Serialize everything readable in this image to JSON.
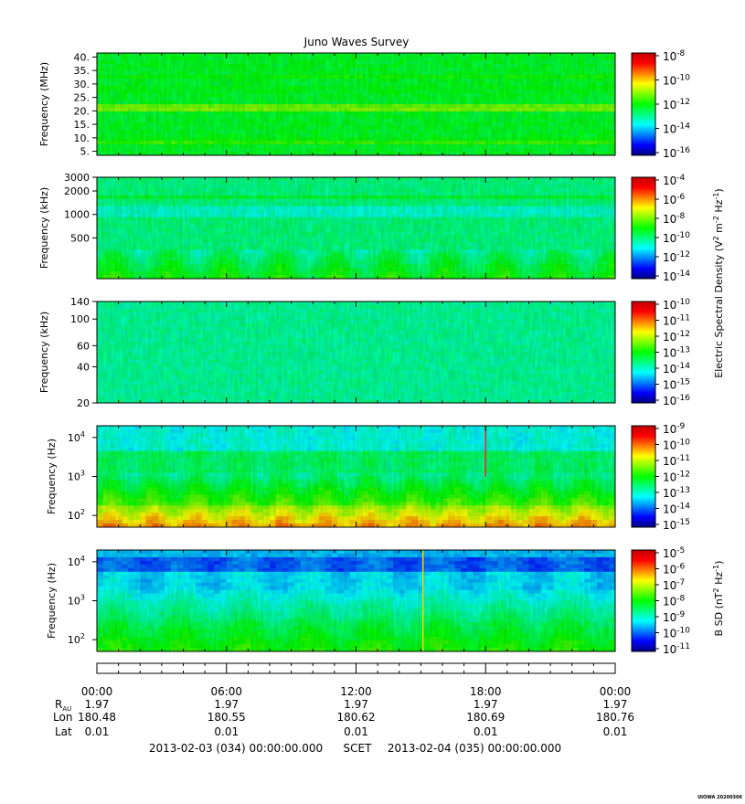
{
  "title": "Juno Waves Survey",
  "colors": {
    "background": "#ffffff",
    "colormap": [
      "#000080",
      "#0000ff",
      "#0080ff",
      "#00ffff",
      "#00ff80",
      "#00ff00",
      "#80ff00",
      "#ffff00",
      "#ff8000",
      "#ff0000",
      "#c00000"
    ]
  },
  "chart_data": [
    {
      "type": "heatmap",
      "ylabel": "Frequency (MHz)",
      "yscale": "linear",
      "ylim": [
        3.5,
        41.5
      ],
      "yticks": [
        {
          "v": 5,
          "label": "5."
        },
        {
          "v": 10,
          "label": "10."
        },
        {
          "v": 15,
          "label": "15."
        },
        {
          "v": 20,
          "label": "20."
        },
        {
          "v": 25,
          "label": "25."
        },
        {
          "v": 30,
          "label": "30."
        },
        {
          "v": 35,
          "label": "35."
        },
        {
          "v": 40,
          "label": "40."
        }
      ],
      "colorbar": {
        "exponents": [
          "-8",
          "-10",
          "-12",
          "-14",
          "-16"
        ],
        "label": ""
      },
      "bands": [
        {
          "y": 21.0,
          "level": 0.62
        },
        {
          "y": 8.5,
          "level": 0.55
        },
        {
          "y": 33.0,
          "level": 0.52
        },
        {
          "y": 28.0,
          "level": 0.52
        }
      ],
      "background_level": 0.47
    },
    {
      "type": "heatmap",
      "ylabel": "Frequency (kHz)",
      "yscale": "log",
      "ylim": [
        150,
        3000
      ],
      "yticks": [
        {
          "v": 500,
          "label": "500"
        },
        {
          "v": 1000,
          "label": "1000"
        },
        {
          "v": 2000,
          "label": "2000"
        },
        {
          "v": 3000,
          "label": "3000"
        }
      ],
      "colorbar": {
        "exponents": [
          "-4",
          "-6",
          "-8",
          "-10",
          "-12",
          "-14"
        ],
        "label": ""
      },
      "background_level": 0.4
    },
    {
      "type": "heatmap",
      "ylabel": "Frequency (kHz)",
      "yscale": "log",
      "ylim": [
        20,
        140
      ],
      "yticks": [
        {
          "v": 20,
          "label": "20"
        },
        {
          "v": 40,
          "label": "40"
        },
        {
          "v": 60,
          "label": "60"
        },
        {
          "v": 100,
          "label": "100"
        },
        {
          "v": 140,
          "label": "140"
        }
      ],
      "colorbar": {
        "exponents": [
          "-10",
          "-11",
          "-12",
          "-13",
          "-14",
          "-15",
          "-16"
        ],
        "label": "Electric Spectral Density (V<sup>2</sup> m<sup>-2</sup> Hz<sup>-1</sup>)"
      },
      "background_level": 0.38
    },
    {
      "type": "heatmap",
      "ylabel": "Frequency (Hz)",
      "yscale": "log",
      "ylim": [
        50,
        20000
      ],
      "yticks": [
        {
          "v": 100,
          "label": "10",
          "sup": "2"
        },
        {
          "v": 1000,
          "label": "10",
          "sup": "3"
        },
        {
          "v": 10000,
          "label": "10",
          "sup": "4"
        }
      ],
      "colorbar": {
        "exponents": [
          "-9",
          "-10",
          "-11",
          "-12",
          "-13",
          "-14",
          "-15"
        ],
        "label": ""
      },
      "event": {
        "x_hours": 18.0,
        "color": "#ff2020"
      }
    },
    {
      "type": "heatmap",
      "ylabel": "Frequency (Hz)",
      "yscale": "log",
      "ylim": [
        50,
        20000
      ],
      "yticks": [
        {
          "v": 100,
          "label": "10",
          "sup": "2"
        },
        {
          "v": 1000,
          "label": "10",
          "sup": "3"
        },
        {
          "v": 10000,
          "label": "10",
          "sup": "4"
        }
      ],
      "colorbar": {
        "exponents": [
          "-5",
          "-6",
          "-7",
          "-8",
          "-9",
          "-10",
          "-11"
        ],
        "label": "B SD (nT<sup>2</sup> Hz<sup>-1</sup>)"
      },
      "event": {
        "x_hours": 15.1,
        "color": "#ffd000"
      }
    }
  ],
  "xaxis": {
    "range_hours": [
      0,
      24
    ],
    "ticks": [
      {
        "hours": 0,
        "time": "00:00",
        "r_au": "1.97",
        "lon": "180.48",
        "lat": "0.01"
      },
      {
        "hours": 6,
        "time": "06:00",
        "r_au": "1.97",
        "lon": "180.55",
        "lat": "0.01"
      },
      {
        "hours": 12,
        "time": "12:00",
        "r_au": "1.97",
        "lon": "180.62",
        "lat": "0.01"
      },
      {
        "hours": 18,
        "time": "18:00",
        "r_au": "1.97",
        "lon": "180.69",
        "lat": "0.01"
      },
      {
        "hours": 24,
        "time": "00:00",
        "r_au": "1.97",
        "lon": "180.76",
        "lat": "0.01"
      }
    ],
    "row_labels": {
      "r": "R",
      "r_sub": "AU",
      "lon": "Lon",
      "lat": "Lat"
    }
  },
  "footer": {
    "start": "2013-02-03 (034) 00:00:00.000",
    "scet": "SCET",
    "end": "2013-02-04 (035) 00:00:00.000"
  },
  "credit": "UIOWA 20200306"
}
